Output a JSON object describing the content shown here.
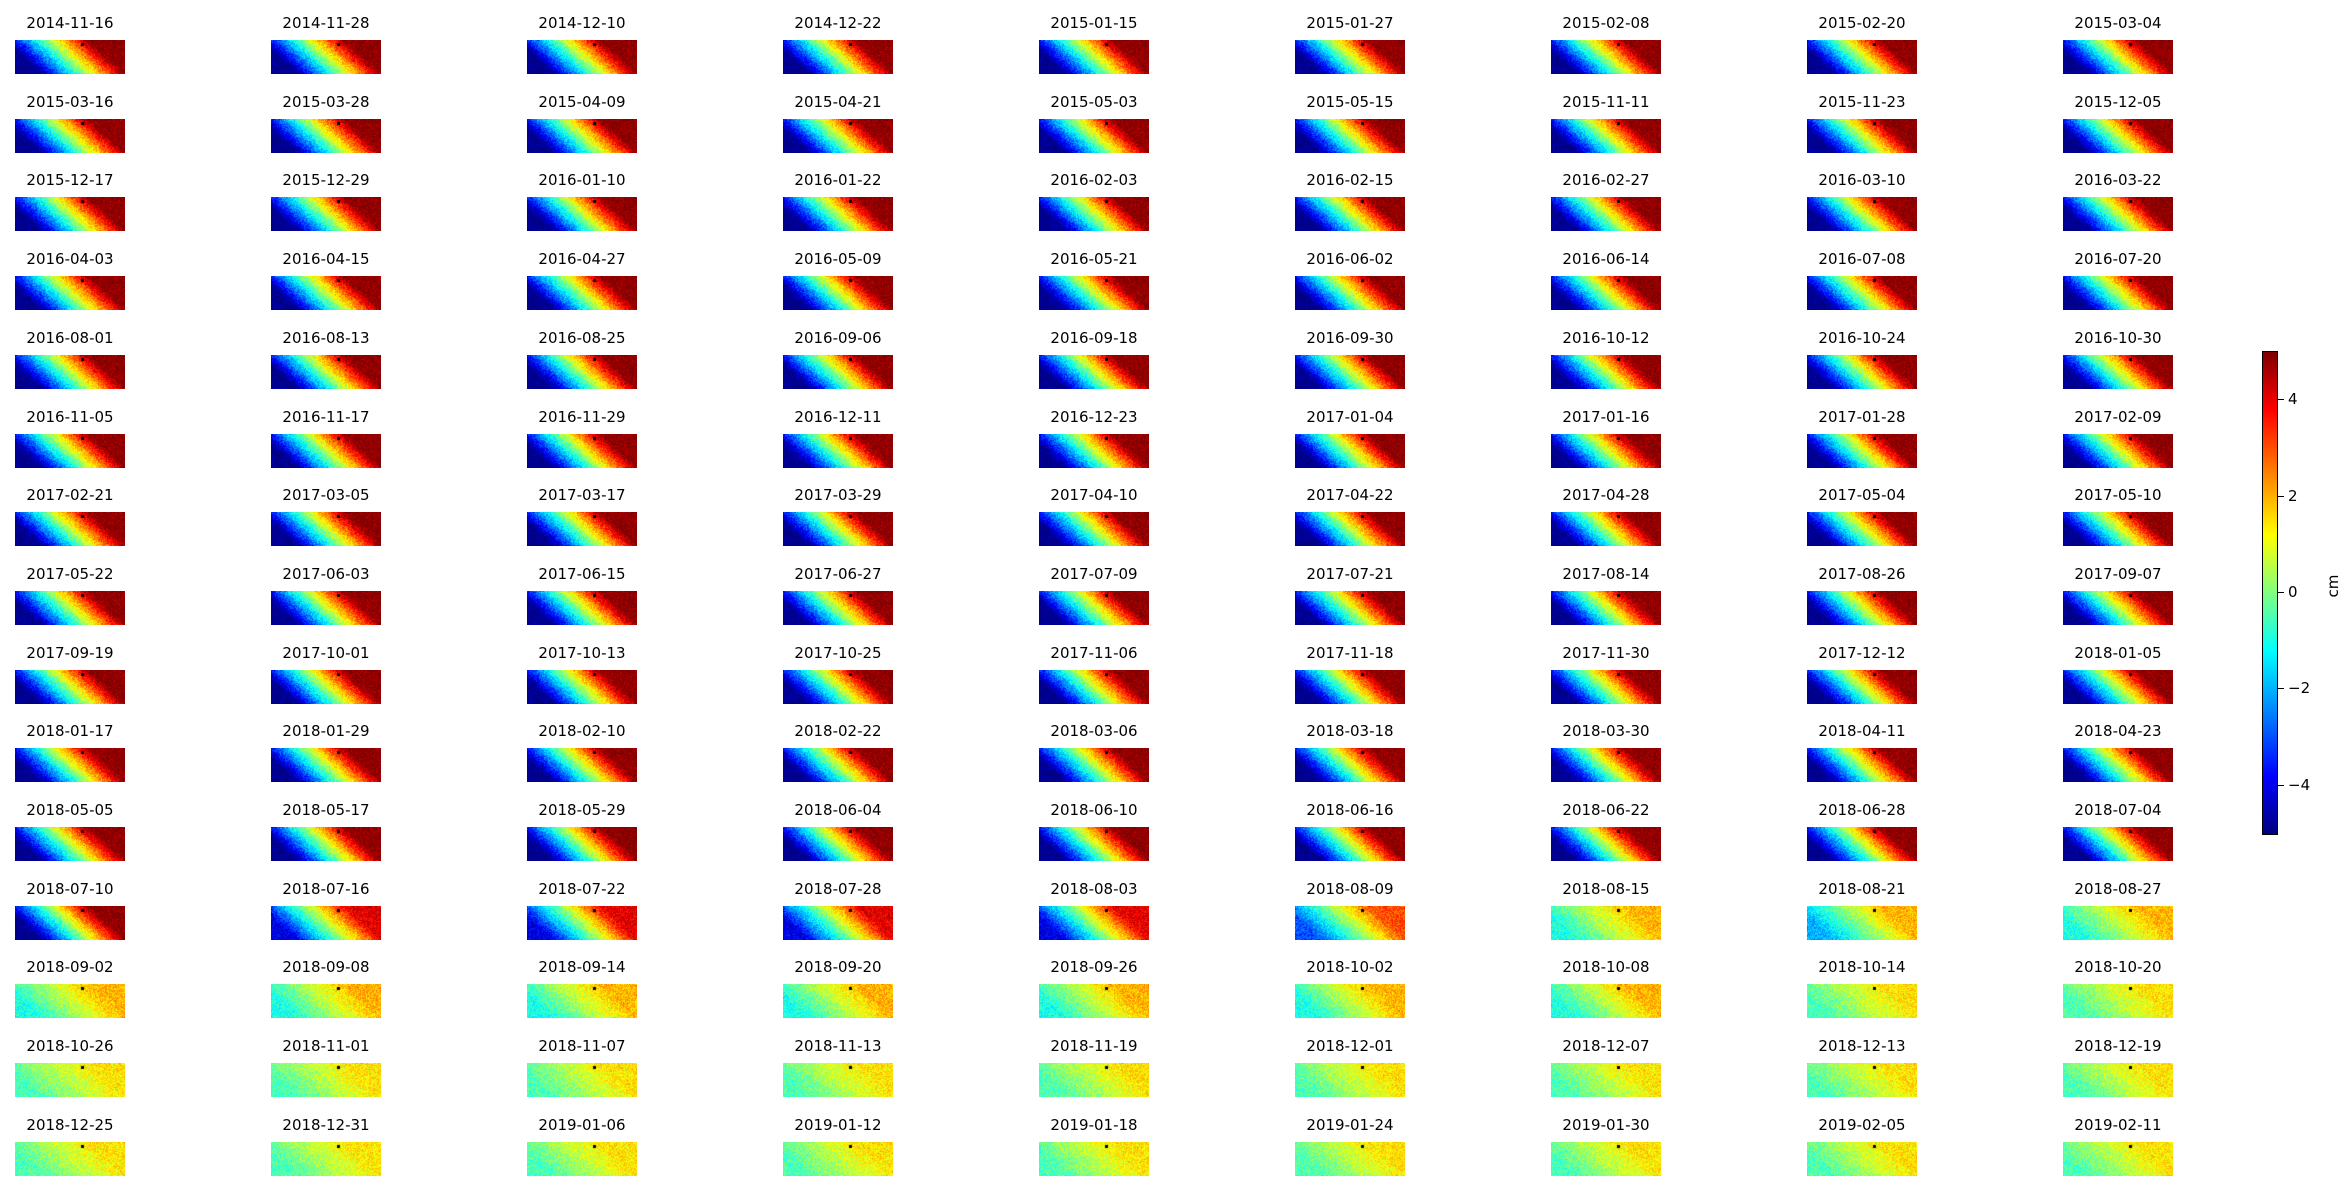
{
  "chart_data": {
    "type": "heatmap",
    "grid": {
      "rows": 15,
      "cols": 9
    },
    "colormap": "jet",
    "colormap_colors": [
      "#00007f",
      "#0000ff",
      "#0080ff",
      "#00ffff",
      "#80ff80",
      "#ffff00",
      "#ff8000",
      "#ff0000",
      "#7f0000"
    ],
    "panels": [
      {
        "date": "2014-11-16",
        "amp": 5
      },
      {
        "date": "2014-11-28",
        "amp": 5
      },
      {
        "date": "2014-12-10",
        "amp": 5
      },
      {
        "date": "2014-12-22",
        "amp": 5
      },
      {
        "date": "2015-01-15",
        "amp": 5
      },
      {
        "date": "2015-01-27",
        "amp": 5
      },
      {
        "date": "2015-02-08",
        "amp": 5
      },
      {
        "date": "2015-02-20",
        "amp": 5
      },
      {
        "date": "2015-03-04",
        "amp": 5
      },
      {
        "date": "2015-03-16",
        "amp": 5
      },
      {
        "date": "2015-03-28",
        "amp": 5
      },
      {
        "date": "2015-04-09",
        "amp": 5
      },
      {
        "date": "2015-04-21",
        "amp": 5
      },
      {
        "date": "2015-05-03",
        "amp": 5
      },
      {
        "date": "2015-05-15",
        "amp": 5
      },
      {
        "date": "2015-11-11",
        "amp": 5
      },
      {
        "date": "2015-11-23",
        "amp": 5
      },
      {
        "date": "2015-12-05",
        "amp": 5
      },
      {
        "date": "2015-12-17",
        "amp": 5
      },
      {
        "date": "2015-12-29",
        "amp": 5
      },
      {
        "date": "2016-01-10",
        "amp": 5
      },
      {
        "date": "2016-01-22",
        "amp": 5
      },
      {
        "date": "2016-02-03",
        "amp": 5
      },
      {
        "date": "2016-02-15",
        "amp": 5
      },
      {
        "date": "2016-02-27",
        "amp": 5
      },
      {
        "date": "2016-03-10",
        "amp": 5
      },
      {
        "date": "2016-03-22",
        "amp": 5
      },
      {
        "date": "2016-04-03",
        "amp": 5
      },
      {
        "date": "2016-04-15",
        "amp": 5
      },
      {
        "date": "2016-04-27",
        "amp": 5
      },
      {
        "date": "2016-05-09",
        "amp": 5
      },
      {
        "date": "2016-05-21",
        "amp": 5
      },
      {
        "date": "2016-06-02",
        "amp": 5
      },
      {
        "date": "2016-06-14",
        "amp": 5
      },
      {
        "date": "2016-07-08",
        "amp": 5
      },
      {
        "date": "2016-07-20",
        "amp": 5
      },
      {
        "date": "2016-08-01",
        "amp": 5
      },
      {
        "date": "2016-08-13",
        "amp": 5
      },
      {
        "date": "2016-08-25",
        "amp": 5
      },
      {
        "date": "2016-09-06",
        "amp": 5
      },
      {
        "date": "2016-09-18",
        "amp": 5
      },
      {
        "date": "2016-09-30",
        "amp": 5
      },
      {
        "date": "2016-10-12",
        "amp": 5
      },
      {
        "date": "2016-10-24",
        "amp": 5
      },
      {
        "date": "2016-10-30",
        "amp": 5
      },
      {
        "date": "2016-11-05",
        "amp": 5
      },
      {
        "date": "2016-11-17",
        "amp": 5
      },
      {
        "date": "2016-11-29",
        "amp": 5
      },
      {
        "date": "2016-12-11",
        "amp": 5
      },
      {
        "date": "2016-12-23",
        "amp": 5
      },
      {
        "date": "2017-01-04",
        "amp": 5
      },
      {
        "date": "2017-01-16",
        "amp": 5
      },
      {
        "date": "2017-01-28",
        "amp": 5
      },
      {
        "date": "2017-02-09",
        "amp": 5
      },
      {
        "date": "2017-02-21",
        "amp": 5
      },
      {
        "date": "2017-03-05",
        "amp": 5
      },
      {
        "date": "2017-03-17",
        "amp": 5
      },
      {
        "date": "2017-03-29",
        "amp": 5
      },
      {
        "date": "2017-04-10",
        "amp": 5
      },
      {
        "date": "2017-04-22",
        "amp": 5
      },
      {
        "date": "2017-04-28",
        "amp": 5
      },
      {
        "date": "2017-05-04",
        "amp": 5
      },
      {
        "date": "2017-05-10",
        "amp": 5
      },
      {
        "date": "2017-05-22",
        "amp": 5
      },
      {
        "date": "2017-06-03",
        "amp": 5
      },
      {
        "date": "2017-06-15",
        "amp": 5
      },
      {
        "date": "2017-06-27",
        "amp": 5
      },
      {
        "date": "2017-07-09",
        "amp": 5
      },
      {
        "date": "2017-07-21",
        "amp": 5
      },
      {
        "date": "2017-08-14",
        "amp": 5
      },
      {
        "date": "2017-08-26",
        "amp": 5
      },
      {
        "date": "2017-09-07",
        "amp": 5
      },
      {
        "date": "2017-09-19",
        "amp": 5
      },
      {
        "date": "2017-10-01",
        "amp": 5
      },
      {
        "date": "2017-10-13",
        "amp": 5
      },
      {
        "date": "2017-10-25",
        "amp": 5
      },
      {
        "date": "2017-11-06",
        "amp": 5
      },
      {
        "date": "2017-11-18",
        "amp": 5
      },
      {
        "date": "2017-11-30",
        "amp": 5
      },
      {
        "date": "2017-12-12",
        "amp": 5
      },
      {
        "date": "2018-01-05",
        "amp": 5
      },
      {
        "date": "2018-01-17",
        "amp": 5
      },
      {
        "date": "2018-01-29",
        "amp": 5
      },
      {
        "date": "2018-02-10",
        "amp": 5
      },
      {
        "date": "2018-02-22",
        "amp": 5
      },
      {
        "date": "2018-03-06",
        "amp": 5
      },
      {
        "date": "2018-03-18",
        "amp": 5
      },
      {
        "date": "2018-03-30",
        "amp": 5
      },
      {
        "date": "2018-04-11",
        "amp": 5
      },
      {
        "date": "2018-04-23",
        "amp": 5
      },
      {
        "date": "2018-05-05",
        "amp": 5
      },
      {
        "date": "2018-05-17",
        "amp": 5
      },
      {
        "date": "2018-05-29",
        "amp": 5
      },
      {
        "date": "2018-06-04",
        "amp": 5
      },
      {
        "date": "2018-06-10",
        "amp": 5
      },
      {
        "date": "2018-06-16",
        "amp": 5
      },
      {
        "date": "2018-06-22",
        "amp": 5
      },
      {
        "date": "2018-06-28",
        "amp": 5
      },
      {
        "date": "2018-07-04",
        "amp": 5
      },
      {
        "date": "2018-07-10",
        "amp": 5
      },
      {
        "date": "2018-07-16",
        "amp": 4
      },
      {
        "date": "2018-07-22",
        "amp": 4
      },
      {
        "date": "2018-07-28",
        "amp": 4
      },
      {
        "date": "2018-08-03",
        "amp": 4
      },
      {
        "date": "2018-08-09",
        "amp": 3
      },
      {
        "date": "2018-08-15",
        "amp": 1.5
      },
      {
        "date": "2018-08-21",
        "amp": 2
      },
      {
        "date": "2018-08-27",
        "amp": 1.5
      },
      {
        "date": "2018-09-02",
        "amp": 1.5
      },
      {
        "date": "2018-09-08",
        "amp": 1.5
      },
      {
        "date": "2018-09-14",
        "amp": 1.5
      },
      {
        "date": "2018-09-20",
        "amp": 1.5
      },
      {
        "date": "2018-09-26",
        "amp": 1.5
      },
      {
        "date": "2018-10-02",
        "amp": 1.5
      },
      {
        "date": "2018-10-08",
        "amp": 1.5
      },
      {
        "date": "2018-10-14",
        "amp": 1
      },
      {
        "date": "2018-10-20",
        "amp": 1
      },
      {
        "date": "2018-10-26",
        "amp": 1
      },
      {
        "date": "2018-11-01",
        "amp": 1
      },
      {
        "date": "2018-11-07",
        "amp": 1
      },
      {
        "date": "2018-11-13",
        "amp": 1
      },
      {
        "date": "2018-11-19",
        "amp": 1
      },
      {
        "date": "2018-12-01",
        "amp": 1
      },
      {
        "date": "2018-12-07",
        "amp": 1
      },
      {
        "date": "2018-12-13",
        "amp": 1
      },
      {
        "date": "2018-12-19",
        "amp": 1
      },
      {
        "date": "2018-12-25",
        "amp": 1
      },
      {
        "date": "2018-12-31",
        "amp": 1
      },
      {
        "date": "2019-01-06",
        "amp": 1
      },
      {
        "date": "2019-01-12",
        "amp": 1
      },
      {
        "date": "2019-01-18",
        "amp": 1
      },
      {
        "date": "2019-01-24",
        "amp": 1
      },
      {
        "date": "2019-01-30",
        "amp": 1
      },
      {
        "date": "2019-02-05",
        "amp": 1
      },
      {
        "date": "2019-02-11",
        "amp": 1
      }
    ],
    "colorbar": {
      "label": "cm",
      "vmin": -5,
      "vmax": 5,
      "ticks": [
        {
          "value": 4,
          "label": "4"
        },
        {
          "value": 2,
          "label": "2"
        },
        {
          "value": 0,
          "label": "0"
        },
        {
          "value": -2,
          "label": "−2"
        },
        {
          "value": -4,
          "label": "−4"
        }
      ]
    }
  }
}
